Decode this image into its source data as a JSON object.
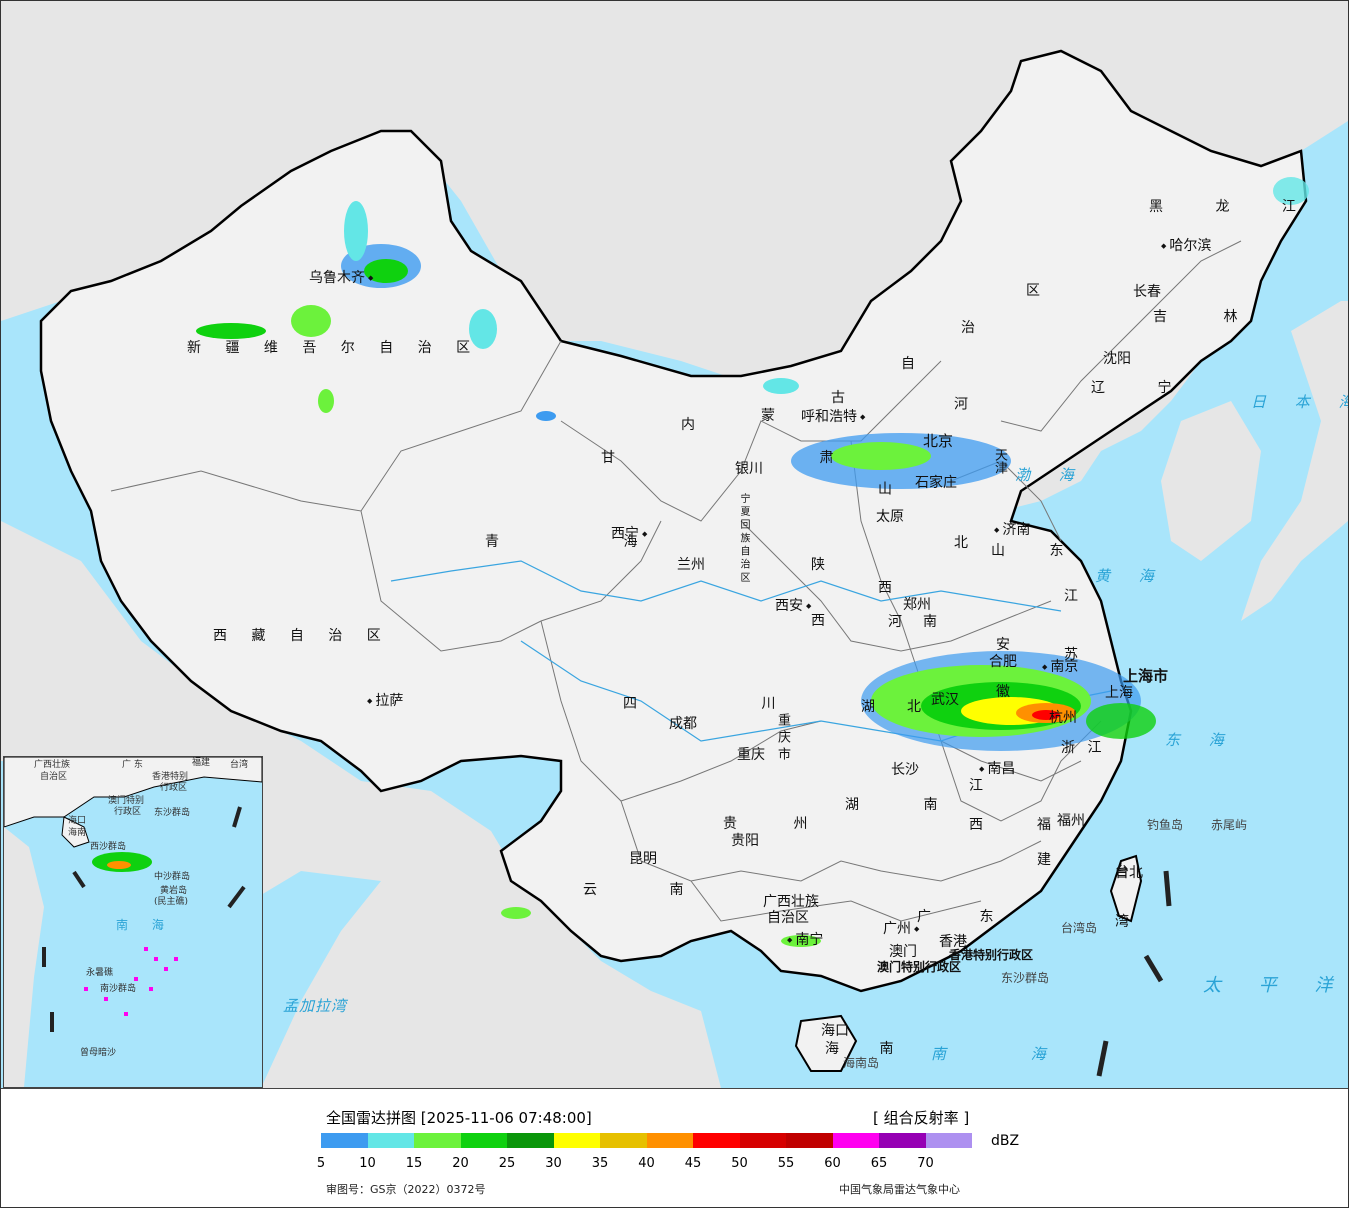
{
  "map": {
    "ocean_color": "#a9e5fb",
    "land_color": "#f2f2f2",
    "foreign_land_color": "#e6e6e6",
    "provinces": [
      "新 疆 维 吾 尔 自 治 区",
      "西 藏 自 治 区",
      "青 海",
      "甘 肃",
      "内",
      "蒙",
      "古",
      "自",
      "治",
      "区",
      "宁 夏 回 族 自 治 区",
      "四 川",
      "重 庆 市",
      "陕",
      "西",
      "山 西",
      "河 北",
      "河",
      "南",
      "山 东",
      "黑 龙 江",
      "吉 林",
      "辽 宁",
      "江 苏",
      "安",
      "徽",
      "湖",
      "北",
      "浙 江",
      "上海市",
      "湖 南",
      "江",
      "西",
      "福",
      "建",
      "贵 州",
      "云 南",
      "广西壮族",
      "自治区",
      "广 东",
      "海 南",
      "台 湾",
      "香港特别行政区",
      "澳门特别行政区"
    ],
    "cities": [
      "乌鲁木齐",
      "拉萨",
      "西宁",
      "兰州",
      "银川",
      "呼和浩特",
      "北京",
      "天津",
      "石家庄",
      "太原",
      "济南",
      "郑州",
      "西安",
      "成都",
      "重庆",
      "贵阳",
      "昆明",
      "南宁",
      "长沙",
      "武汉",
      "南昌",
      "合肥",
      "南京",
      "上海",
      "杭州",
      "福州",
      "台北",
      "广州",
      "香港",
      "澳门",
      "海口",
      "沈阳",
      "长春",
      "哈尔滨"
    ],
    "seas": [
      "日 本 海",
      "渤 海",
      "黄 海",
      "东 海",
      "太 平 洋",
      "南 海",
      "孟加拉湾"
    ],
    "islands": [
      "钓鱼岛",
      "赤尾屿",
      "台湾岛",
      "东沙群岛",
      "海南岛"
    ],
    "inset": {
      "labels": [
        "广西壮族",
        "自治区",
        "广 东",
        "福建",
        "台湾",
        "香港特别",
        "行政区",
        "澳门特别",
        "行政区",
        "东沙群岛",
        "海口",
        "海南",
        "西沙群岛",
        "中沙群岛",
        "黄岩岛",
        "(民主礁)",
        "南 海",
        "永暑礁",
        "南沙群岛",
        "曾母暗沙"
      ]
    }
  },
  "legend": {
    "title": "全国雷达拼图 [2025-11-06 07:48:00]",
    "product": "[ 组合反射率 ]",
    "unit": "dBZ",
    "colors": [
      "#3d9bf0",
      "#63e6e6",
      "#6cf23c",
      "#0fd10f",
      "#0a960a",
      "#ffff00",
      "#e6c000",
      "#ff9000",
      "#ff0000",
      "#d60000",
      "#c00000",
      "#ff00f0",
      "#9600b4",
      "#ad90f0"
    ],
    "ticks": [
      "5",
      "10",
      "15",
      "20",
      "25",
      "30",
      "35",
      "40",
      "45",
      "50",
      "55",
      "60",
      "65",
      "70"
    ],
    "approval": "审图号：GS京（2022）0372号",
    "credit": "中国气象局雷达气象中心"
  }
}
